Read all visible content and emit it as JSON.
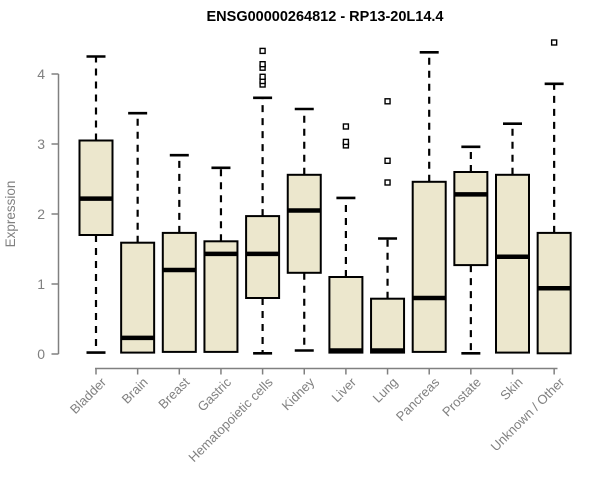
{
  "chart_data": {
    "type": "boxplot",
    "title": "ENSG00000264812 - RP13-20L14.4",
    "ylabel": "Expression",
    "xlabel": "",
    "ylim": [
      0,
      4.5
    ],
    "yticks": [
      0,
      1,
      2,
      3,
      4
    ],
    "grid": false,
    "legend_position": "none",
    "categories": [
      "Bladder",
      "Brain",
      "Breast",
      "Gastric",
      "Hematopoietic cells",
      "Kidney",
      "Liver",
      "Lung",
      "Pancreas",
      "Prostate",
      "Skin",
      "Unknown / Other"
    ],
    "series": [
      {
        "name": "Bladder",
        "whisker_low": 0.02,
        "q1": 1.7,
        "median": 2.22,
        "q3": 3.05,
        "whisker_high": 4.25,
        "outliers": []
      },
      {
        "name": "Brain",
        "whisker_low": 0.01,
        "q1": 0.02,
        "median": 0.23,
        "q3": 1.59,
        "whisker_high": 3.44,
        "outliers": []
      },
      {
        "name": "Breast",
        "whisker_low": 0.02,
        "q1": 0.03,
        "median": 1.2,
        "q3": 1.73,
        "whisker_high": 2.84,
        "outliers": []
      },
      {
        "name": "Gastric",
        "whisker_low": 0.02,
        "q1": 0.03,
        "median": 1.43,
        "q3": 1.61,
        "whisker_high": 2.66,
        "outliers": []
      },
      {
        "name": "Hematopoietic cells",
        "whisker_low": 0.01,
        "q1": 0.8,
        "median": 1.43,
        "q3": 1.97,
        "whisker_high": 3.66,
        "outliers": [
          3.85,
          3.9,
          3.96,
          4.09,
          4.14,
          4.33
        ]
      },
      {
        "name": "Kidney",
        "whisker_low": 0.05,
        "q1": 1.16,
        "median": 2.05,
        "q3": 2.56,
        "whisker_high": 3.5,
        "outliers": []
      },
      {
        "name": "Liver",
        "whisker_low": 0.01,
        "q1": 0.02,
        "median": 0.05,
        "q3": 1.1,
        "whisker_high": 2.23,
        "outliers": [
          2.98,
          3.03,
          3.25
        ]
      },
      {
        "name": "Lung",
        "whisker_low": 0.01,
        "q1": 0.02,
        "median": 0.05,
        "q3": 0.79,
        "whisker_high": 1.65,
        "outliers": [
          2.45,
          2.76,
          3.61
        ]
      },
      {
        "name": "Pancreas",
        "whisker_low": 0.03,
        "q1": 0.03,
        "median": 0.8,
        "q3": 2.46,
        "whisker_high": 4.31,
        "outliers": []
      },
      {
        "name": "Prostate",
        "whisker_low": 0.01,
        "q1": 1.27,
        "median": 2.28,
        "q3": 2.6,
        "whisker_high": 2.96,
        "outliers": []
      },
      {
        "name": "Skin",
        "whisker_low": 0.02,
        "q1": 0.02,
        "median": 1.39,
        "q3": 2.56,
        "whisker_high": 3.29,
        "outliers": []
      },
      {
        "name": "Unknown / Other",
        "whisker_low": 0.01,
        "q1": 0.01,
        "median": 0.94,
        "q3": 1.73,
        "whisker_high": 3.86,
        "outliers": [
          4.45
        ]
      }
    ],
    "colors": {
      "box_fill": "#ece7cd",
      "box_border": "#000000",
      "median": "#000000",
      "whisker": "#000000",
      "axis": "#808080",
      "labels": "#808080",
      "title": "#000000",
      "background": "#ffffff"
    }
  }
}
